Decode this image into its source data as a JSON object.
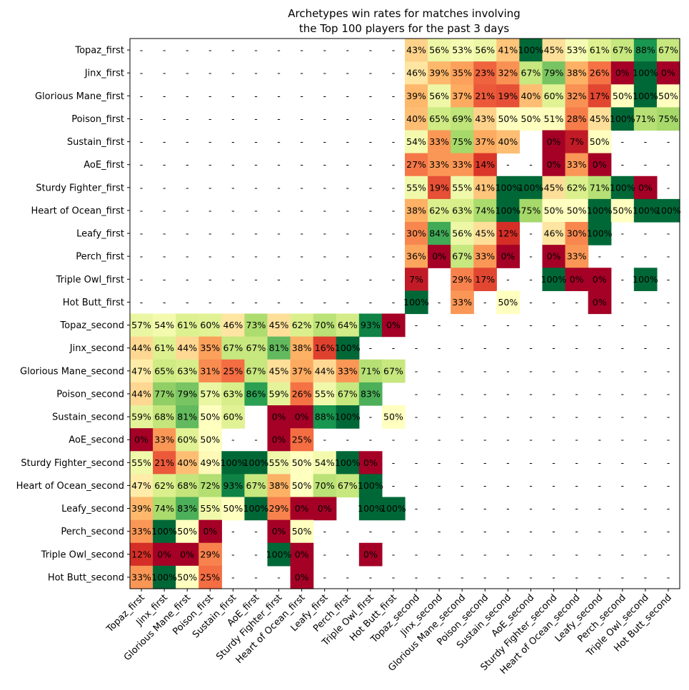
{
  "chart_data": {
    "type": "heatmap",
    "title": [
      "Archetypes win rates for matches involving",
      "the Top 100 players for the past 3 days"
    ],
    "xlabel": "",
    "ylabel": "",
    "colormap": "RdYlGn",
    "value_range": [
      0,
      100
    ],
    "grid": false,
    "legend": "none",
    "missing_label": "-",
    "y_categories": [
      "Topaz_first",
      "Jinx_first",
      "Glorious Mane_first",
      "Poison_first",
      "Sustain_first",
      "AoE_first",
      "Sturdy Fighter_first",
      "Heart of Ocean_first",
      "Leafy_first",
      "Perch_first",
      "Triple Owl_first",
      "Hot Butt_first",
      "Topaz_second",
      "Jinx_second",
      "Glorious Mane_second",
      "Poison_second",
      "Sustain_second",
      "AoE_second",
      "Sturdy Fighter_second",
      "Heart of Ocean_second",
      "Leafy_second",
      "Perch_second",
      "Triple Owl_second",
      "Hot Butt_second"
    ],
    "x_categories": [
      "Topaz_first",
      "Jinx_first",
      "Glorious Mane_first",
      "Poison_first",
      "Sustain_first",
      "AoE_first",
      "Sturdy Fighter_first",
      "Heart of Ocean_first",
      "Leafy_first",
      "Perch_first",
      "Triple Owl_first",
      "Hot Butt_first",
      "Topaz_second",
      "Jinx_second",
      "Glorious Mane_second",
      "Poison_second",
      "Sustain_second",
      "AoE_second",
      "Sturdy Fighter_second",
      "Heart of Ocean_second",
      "Leafy_second",
      "Perch_second",
      "Triple Owl_second",
      "Hot Butt_second"
    ],
    "values": [
      [
        "-",
        "-",
        "-",
        "-",
        "-",
        "-",
        "-",
        "-",
        "-",
        "-",
        "-",
        "-",
        43,
        56,
        53,
        56,
        41,
        100,
        45,
        53,
        61,
        67,
        88,
        67
      ],
      [
        "-",
        "-",
        "-",
        "-",
        "-",
        "-",
        "-",
        "-",
        "-",
        "-",
        "-",
        "-",
        46,
        39,
        35,
        23,
        32,
        67,
        79,
        38,
        26,
        0,
        100,
        0
      ],
      [
        "-",
        "-",
        "-",
        "-",
        "-",
        "-",
        "-",
        "-",
        "-",
        "-",
        "-",
        "-",
        39,
        56,
        37,
        21,
        19,
        40,
        60,
        32,
        17,
        50,
        100,
        50
      ],
      [
        "-",
        "-",
        "-",
        "-",
        "-",
        "-",
        "-",
        "-",
        "-",
        "-",
        "-",
        "-",
        40,
        65,
        69,
        43,
        50,
        50,
        51,
        28,
        45,
        100,
        71,
        75
      ],
      [
        "-",
        "-",
        "-",
        "-",
        "-",
        "-",
        "-",
        "-",
        "-",
        "-",
        "-",
        "-",
        54,
        33,
        75,
        37,
        40,
        null,
        0,
        7,
        50,
        "-",
        "-",
        "-"
      ],
      [
        "-",
        "-",
        "-",
        "-",
        "-",
        "-",
        "-",
        "-",
        "-",
        "-",
        "-",
        "-",
        27,
        33,
        33,
        14,
        "-",
        "-",
        0,
        33,
        0,
        "-",
        "-",
        "-"
      ],
      [
        "-",
        "-",
        "-",
        "-",
        "-",
        "-",
        "-",
        "-",
        "-",
        "-",
        "-",
        "-",
        55,
        19,
        55,
        41,
        100,
        100,
        45,
        62,
        71,
        100,
        0,
        "-"
      ],
      [
        "-",
        "-",
        "-",
        "-",
        "-",
        "-",
        "-",
        "-",
        "-",
        "-",
        "-",
        "-",
        38,
        62,
        63,
        74,
        100,
        75,
        50,
        50,
        100,
        50,
        100,
        100
      ],
      [
        "-",
        "-",
        "-",
        "-",
        "-",
        "-",
        "-",
        "-",
        "-",
        "-",
        "-",
        "-",
        30,
        84,
        56,
        45,
        12,
        "-",
        46,
        30,
        100,
        "-",
        "-",
        "-"
      ],
      [
        "-",
        "-",
        "-",
        "-",
        "-",
        "-",
        "-",
        "-",
        "-",
        "-",
        "-",
        "-",
        36,
        0,
        67,
        33,
        0,
        "-",
        0,
        33,
        "-",
        "-",
        "-",
        "-"
      ],
      [
        "-",
        "-",
        "-",
        "-",
        "-",
        "-",
        "-",
        "-",
        "-",
        "-",
        "-",
        "-",
        7,
        null,
        29,
        17,
        "-",
        "-",
        100,
        0,
        0,
        "-",
        100,
        "-"
      ],
      [
        "-",
        "-",
        "-",
        "-",
        "-",
        "-",
        "-",
        "-",
        "-",
        "-",
        "-",
        "-",
        100,
        "-",
        33,
        "-",
        50,
        "-",
        "-",
        "-",
        0,
        "-",
        "-",
        "-"
      ],
      [
        57,
        54,
        61,
        60,
        46,
        73,
        45,
        62,
        70,
        64,
        93,
        0,
        "-",
        "-",
        "-",
        "-",
        "-",
        "-",
        "-",
        "-",
        "-",
        "-",
        "-",
        "-"
      ],
      [
        44,
        61,
        44,
        35,
        67,
        67,
        81,
        38,
        16,
        100,
        "-",
        "-",
        "-",
        "-",
        "-",
        "-",
        "-",
        "-",
        "-",
        "-",
        "-",
        "-",
        "-",
        "-"
      ],
      [
        47,
        65,
        63,
        31,
        25,
        67,
        45,
        37,
        44,
        33,
        71,
        67,
        "-",
        "-",
        "-",
        "-",
        "-",
        "-",
        "-",
        "-",
        "-",
        "-",
        "-",
        "-"
      ],
      [
        44,
        77,
        79,
        57,
        63,
        86,
        59,
        26,
        55,
        67,
        83,
        null,
        "-",
        "-",
        "-",
        "-",
        "-",
        "-",
        "-",
        "-",
        "-",
        "-",
        "-",
        "-"
      ],
      [
        59,
        68,
        81,
        50,
        60,
        null,
        0,
        0,
        88,
        100,
        "-",
        50,
        "-",
        "-",
        "-",
        "-",
        "-",
        "-",
        "-",
        "-",
        "-",
        "-",
        "-",
        "-"
      ],
      [
        0,
        33,
        60,
        50,
        "-",
        "-",
        0,
        25,
        "-",
        "-",
        "-",
        "-",
        "-",
        "-",
        "-",
        "-",
        "-",
        "-",
        "-",
        "-",
        "-",
        "-",
        "-",
        "-"
      ],
      [
        55,
        21,
        40,
        49,
        100,
        100,
        55,
        50,
        54,
        100,
        0,
        "-",
        "-",
        "-",
        "-",
        "-",
        "-",
        "-",
        "-",
        "-",
        "-",
        "-",
        "-",
        "-"
      ],
      [
        47,
        62,
        68,
        72,
        93,
        67,
        38,
        50,
        70,
        67,
        100,
        "-",
        "-",
        "-",
        "-",
        "-",
        "-",
        "-",
        "-",
        "-",
        "-",
        "-",
        "-",
        "-"
      ],
      [
        39,
        74,
        83,
        55,
        50,
        100,
        29,
        0,
        0,
        null,
        100,
        100,
        "-",
        "-",
        "-",
        "-",
        "-",
        "-",
        "-",
        "-",
        "-",
        "-",
        "-",
        "-"
      ],
      [
        33,
        100,
        50,
        0,
        "-",
        "-",
        0,
        50,
        "-",
        "-",
        "-",
        "-",
        "-",
        "-",
        "-",
        "-",
        "-",
        "-",
        "-",
        "-",
        "-",
        "-",
        "-",
        "-"
      ],
      [
        12,
        0,
        0,
        29,
        "-",
        "-",
        100,
        0,
        "-",
        "-",
        0,
        "-",
        "-",
        "-",
        "-",
        "-",
        "-",
        "-",
        "-",
        "-",
        "-",
        "-",
        "-",
        "-"
      ],
      [
        33,
        100,
        50,
        25,
        "-",
        "-",
        "-",
        0,
        "-",
        "-",
        "-",
        "-",
        "-",
        "-",
        "-",
        "-",
        "-",
        "-",
        "-",
        "-",
        "-",
        "-",
        "-",
        "-"
      ]
    ]
  }
}
